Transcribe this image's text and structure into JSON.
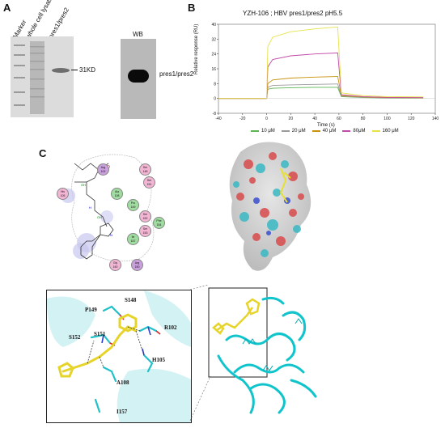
{
  "panelA": {
    "letter": "A",
    "lane_labels": [
      "Marker",
      "whole cell lysates",
      "pres1/pres2"
    ],
    "band_size": "31KD",
    "wb_title": "WB",
    "wb_label": "pres1/pres2"
  },
  "panelB": {
    "letter": "B",
    "colors": {
      "10": "#5ab552",
      "20": "#9a9a9a",
      "40": "#c8920c",
      "80": "#c24aa8",
      "160": "#e6e24a"
    }
  },
  "chart_data": {
    "type": "line",
    "title": "YZH-106 ; HBV pres1/pres2 pH5.5",
    "xlabel": "Time (s)",
    "ylabel": "Relative response (RU)",
    "xlim": [
      -40,
      140
    ],
    "ylim": [
      -8,
      40
    ],
    "xticks": [
      "-40",
      "-20",
      "0",
      "20",
      "40",
      "60",
      "80",
      "100",
      "120",
      "140"
    ],
    "yticks": [
      "-8",
      "0",
      "8",
      "16",
      "24",
      "32",
      "40"
    ],
    "series": [
      {
        "name": "10 μM",
        "color": "#5ab552",
        "x": [
          -40,
          0,
          1,
          5,
          20,
          40,
          58,
          59,
          62,
          80,
          100,
          130
        ],
        "y": [
          0,
          0,
          5,
          5.5,
          5.8,
          6,
          6,
          6,
          1,
          0.5,
          0.3,
          0.2
        ]
      },
      {
        "name": "20 μM",
        "color": "#9a9a9a",
        "x": [
          -40,
          0,
          1,
          5,
          20,
          40,
          58,
          59,
          62,
          80,
          100,
          130
        ],
        "y": [
          0,
          0,
          6,
          7,
          7.3,
          7.6,
          7.8,
          7.8,
          1.2,
          0.6,
          0.4,
          0.3
        ]
      },
      {
        "name": "40 μM",
        "color": "#c8920c",
        "x": [
          -40,
          0,
          1,
          5,
          20,
          40,
          58,
          59,
          62,
          80,
          100,
          130
        ],
        "y": [
          0,
          0,
          8,
          10,
          11,
          11.5,
          11.8,
          11.8,
          1.5,
          0.8,
          0.5,
          0.4
        ]
      },
      {
        "name": "80μM",
        "color": "#c24aa8",
        "x": [
          -40,
          0,
          1,
          5,
          20,
          40,
          58,
          59,
          62,
          80,
          100,
          130
        ],
        "y": [
          0,
          0,
          17,
          21,
          23,
          24,
          24.5,
          24.5,
          2,
          1,
          0.6,
          0.5
        ]
      },
      {
        "name": "160 μM",
        "color": "#e6e24a",
        "x": [
          -40,
          0,
          1,
          5,
          20,
          40,
          58,
          59,
          62,
          80,
          100,
          130
        ],
        "y": [
          0,
          0,
          28,
          33,
          36,
          37.5,
          38.5,
          38.5,
          3,
          1.5,
          1,
          0.8
        ]
      }
    ]
  },
  "panelC": {
    "letter": "C",
    "residues_2d": [
      {
        "name": "Arg",
        "num": "102",
        "color": "#c9a0dc"
      },
      {
        "name": "Ser",
        "num": "148",
        "color": "#f2b5d4"
      },
      {
        "name": "Ser",
        "num": "151",
        "color": "#f2b5d4"
      },
      {
        "name": "His",
        "num": "105",
        "color": "#f2b5d4"
      },
      {
        "name": "Ala",
        "num": "108",
        "color": "#9fdc9f"
      },
      {
        "name": "Pro",
        "num": "149",
        "color": "#9fdc9f"
      },
      {
        "name": "Phe",
        "num": "154",
        "color": "#9fdc9f"
      },
      {
        "name": "Ser",
        "num": "152",
        "color": "#f2b5d4"
      },
      {
        "name": "Ser",
        "num": "153",
        "color": "#f2b5d4"
      },
      {
        "name": "Ile",
        "num": "157",
        "color": "#9fdc9f"
      },
      {
        "name": "Gly",
        "num": "150",
        "color": "#f2b5d4"
      },
      {
        "name": "Arg",
        "num": "150",
        "color": "#c9a0dc"
      }
    ],
    "residue_labels_3d": [
      "S148",
      "P149",
      "R102",
      "S152",
      "S151",
      "H105",
      "A108",
      "I157"
    ]
  }
}
